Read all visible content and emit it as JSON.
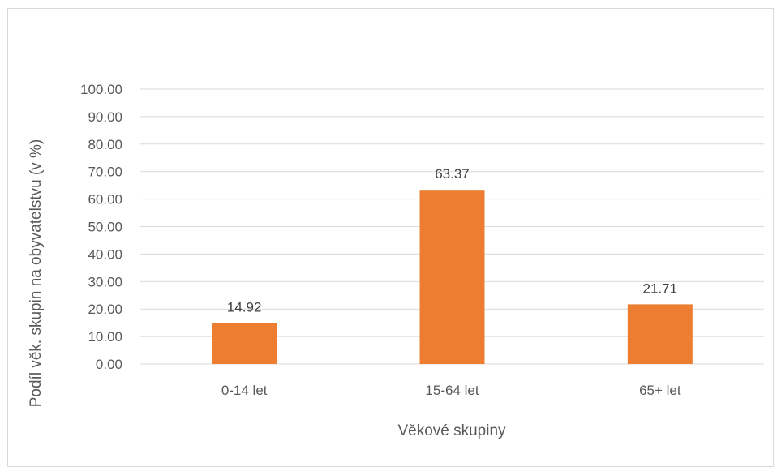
{
  "chart_data": {
    "type": "bar",
    "categories": [
      "0-14 let",
      "15-64 let",
      "65+ let"
    ],
    "values": [
      14.92,
      63.37,
      21.71
    ],
    "data_labels": [
      "14.92",
      "63.37",
      "21.71"
    ],
    "title": "",
    "xlabel": "Věkové skupiny",
    "ylabel": "Podíl věk. skupin na obyvatelstvu (v %)",
    "ylim": [
      0,
      100
    ],
    "yticks": [
      0,
      10,
      20,
      30,
      40,
      50,
      60,
      70,
      80,
      90,
      100
    ],
    "ytick_labels": [
      "0.00",
      "10.00",
      "20.00",
      "30.00",
      "40.00",
      "50.00",
      "60.00",
      "70.00",
      "80.00",
      "90.00",
      "100.00"
    ],
    "grid": true,
    "legend": "none",
    "colors": {
      "bar": "#ed7d31",
      "grid": "#d9d9d9",
      "text": "#595959"
    }
  }
}
